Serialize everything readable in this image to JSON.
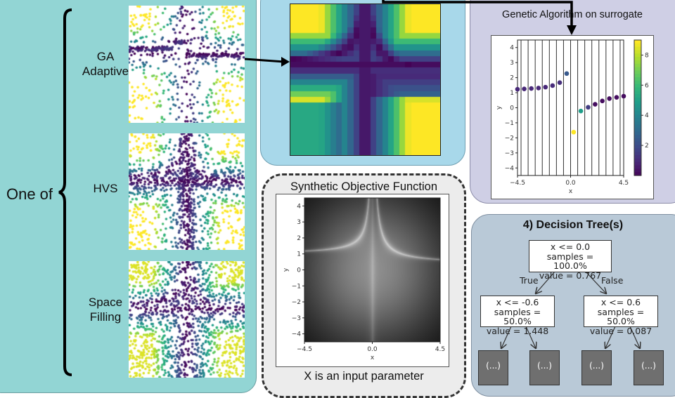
{
  "left": {
    "one_of_label": "One of",
    "methods": [
      {
        "label_line1": "GA",
        "label_line2": "Adaptive"
      },
      {
        "label_line1": "HVS",
        "label_line2": ""
      },
      {
        "label_line1": "Space",
        "label_line2": "Filling"
      }
    ]
  },
  "objective": {
    "title": "Synthetic Objective Function",
    "caption": "X is an input parameter",
    "xlabel": "x",
    "ylabel": "y",
    "xticks": [
      "−4.5",
      "0.0",
      "4.5"
    ],
    "yticks": [
      "4",
      "3",
      "2",
      "1",
      "0",
      "−1",
      "−2",
      "−3",
      "−4"
    ]
  },
  "ga": {
    "title": "Genetic Algorithm on surrogate"
  },
  "chart_data": {
    "type": "scatter",
    "xlabel": "x",
    "ylabel": "y",
    "xlim": [
      -4.5,
      4.5
    ],
    "ylim": [
      -4.5,
      4.5
    ],
    "xticks": [
      "−4.5",
      "0.0",
      "4.5"
    ],
    "yticks": [
      "4",
      "3",
      "2",
      "1",
      "0",
      "−1",
      "−2",
      "−3",
      "−4"
    ],
    "vlines": [
      -4.2,
      -3.6,
      -3.0,
      -2.4,
      -1.8,
      -1.2,
      -0.6,
      0.0,
      0.6,
      1.2,
      1.8,
      2.4,
      3.0,
      3.6,
      4.2
    ],
    "points": [
      {
        "x": -4.5,
        "y": 1.23,
        "c": 1.0
      },
      {
        "x": -3.93,
        "y": 1.25,
        "c": 1.0
      },
      {
        "x": -3.33,
        "y": 1.28,
        "c": 1.0
      },
      {
        "x": -2.72,
        "y": 1.31,
        "c": 1.0
      },
      {
        "x": -2.13,
        "y": 1.37,
        "c": 1.0
      },
      {
        "x": -1.53,
        "y": 1.47,
        "c": 1.1
      },
      {
        "x": -0.92,
        "y": 1.67,
        "c": 1.2
      },
      {
        "x": -0.33,
        "y": 2.27,
        "c": 2.5
      },
      {
        "x": 0.26,
        "y": -1.62,
        "c": 9.0
      },
      {
        "x": 0.87,
        "y": -0.22,
        "c": 5.0
      },
      {
        "x": 1.49,
        "y": 0.03,
        "c": 1.6
      },
      {
        "x": 2.08,
        "y": 0.23,
        "c": 0.3
      },
      {
        "x": 2.69,
        "y": 0.45,
        "c": 0.3
      },
      {
        "x": 3.29,
        "y": 0.61,
        "c": 0.3
      },
      {
        "x": 3.9,
        "y": 0.69,
        "c": 0.3
      },
      {
        "x": 4.5,
        "y": 0.77,
        "c": 0.3
      }
    ],
    "colorbar": {
      "range": [
        0,
        9
      ],
      "ticks": [
        "2",
        "4",
        "6",
        "8"
      ],
      "colormap": "viridis"
    }
  },
  "tree": {
    "title": "4) Decision Tree(s)",
    "root": {
      "l1": "x <= 0.0",
      "l2": "samples = 100.0%",
      "l3": "value = 0.767"
    },
    "left": {
      "l1": "x <= -0.6",
      "l2": "samples = 50.0%",
      "l3": "value = 1.448"
    },
    "right": {
      "l1": "x <= 0.6",
      "l2": "samples = 50.0%",
      "l3": "value = 0.087"
    },
    "true_label": "True",
    "false_label": "False",
    "leaf_label": "(...)"
  },
  "colors": {
    "left_panel": "#92d5d4",
    "surrogate_panel": "#a8d8ea",
    "objective_panel": "#ececec",
    "ga_panel": "#cfcfe5",
    "tree_panel": "#b9c9d7",
    "leaf_box": "#6f6f6f"
  }
}
